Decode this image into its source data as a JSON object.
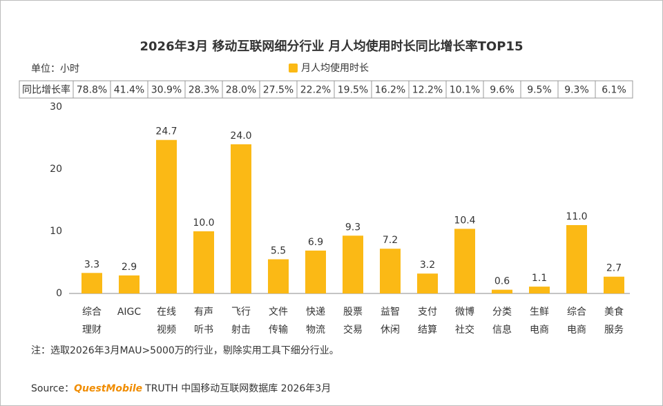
{
  "chart_data": {
    "type": "bar",
    "title": "2026年3月 移动互联网细分行业 月人均使用时长同比增长率TOP15",
    "unit_label": "单位：小时",
    "categories": [
      [
        "综合",
        "理财"
      ],
      [
        "AIGC"
      ],
      [
        "在线",
        "视频"
      ],
      [
        "有声",
        "听书"
      ],
      [
        "飞行",
        "射击"
      ],
      [
        "文件",
        "传输"
      ],
      [
        "快递",
        "物流"
      ],
      [
        "股票",
        "交易"
      ],
      [
        "益智",
        "休闲"
      ],
      [
        "支付",
        "结算"
      ],
      [
        "微博",
        "社交"
      ],
      [
        "分类",
        "信息"
      ],
      [
        "生鲜",
        "电商"
      ],
      [
        "综合",
        "电商"
      ],
      [
        "美食",
        "服务"
      ]
    ],
    "series": [
      {
        "name": "月人均使用时长",
        "color": "#fbb915",
        "values": [
          3.3,
          2.9,
          24.7,
          10.0,
          24.0,
          5.5,
          6.9,
          9.3,
          7.2,
          3.2,
          10.4,
          0.6,
          1.1,
          11.0,
          2.7
        ],
        "value_labels": [
          "3.3",
          "2.9",
          "24.7",
          "10.0",
          "24.0",
          "5.5",
          "6.9",
          "9.3",
          "7.2",
          "3.2",
          "10.4",
          "0.6",
          "1.1",
          "11.0",
          "2.7"
        ]
      }
    ],
    "growth": {
      "label": "同比增长率",
      "values": [
        78.8,
        41.4,
        30.9,
        28.3,
        28.0,
        27.5,
        22.2,
        19.5,
        16.2,
        12.2,
        10.1,
        9.6,
        9.5,
        9.3,
        6.1
      ],
      "value_labels": [
        "78.8%",
        "41.4%",
        "30.9%",
        "28.3%",
        "28.0%",
        "27.5%",
        "22.2%",
        "19.5%",
        "16.2%",
        "12.2%",
        "10.1%",
        "9.6%",
        "9.5%",
        "9.3%",
        "6.1%"
      ]
    },
    "ylim": [
      0,
      30
    ],
    "yticks": [
      0,
      10,
      20,
      30
    ],
    "grid": false,
    "note": "注：选取2026年3月MAU>5000万的行业，剔除实用工具下细分行业。",
    "footer": {
      "prefix": "Source：",
      "brand": "QuestMobile",
      "text": "TRUTH 中国移动互联网数据库 2026年3月"
    }
  }
}
